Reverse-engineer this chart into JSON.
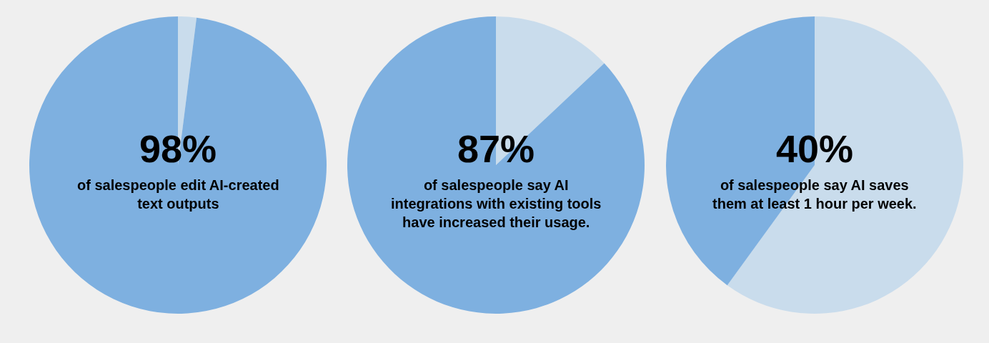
{
  "chart_data": [
    {
      "type": "pie",
      "categories": [
        null,
        null
      ],
      "values": [
        2,
        98
      ],
      "colors": [
        "#c9dcec",
        "#7eb0e0"
      ],
      "value_labels": [
        null,
        "98%"
      ],
      "annotations": [
        "of salespeople edit AI-created\ntext outputs"
      ]
    },
    {
      "type": "pie",
      "categories": [
        null,
        null
      ],
      "values": [
        13,
        87
      ],
      "colors": [
        "#c9dcec",
        "#7eb0e0"
      ],
      "value_labels": [
        null,
        "87%"
      ],
      "annotations": [
        "of salespeople say AI\nintegrations with existing tools\nhave increased their usage."
      ]
    },
    {
      "type": "pie",
      "categories": [
        null,
        null
      ],
      "values": [
        60,
        40
      ],
      "colors": [
        "#c9dcec",
        "#7eb0e0"
      ],
      "value_labels": [
        null,
        "40%"
      ],
      "annotations": [
        "of salespeople say AI saves\nthem at least 1 hour per week."
      ]
    }
  ]
}
